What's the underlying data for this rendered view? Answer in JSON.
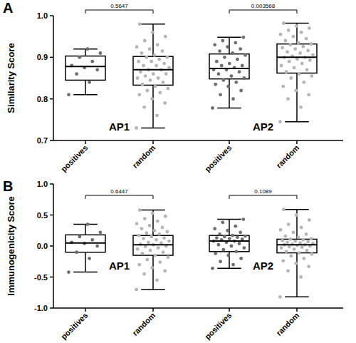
{
  "chart_data": [
    {
      "type": "box",
      "title": "A",
      "y_label": "Similarity Score",
      "categories": [
        "positives",
        "random",
        "positives",
        "random"
      ],
      "groups": [
        {
          "label": "AP1",
          "categories": [
            0,
            1
          ]
        },
        {
          "label": "AP2",
          "categories": [
            2,
            3
          ]
        }
      ],
      "comparisons": [
        {
          "label": "0.5647",
          "categories": [
            0,
            1
          ]
        },
        {
          "label": "0.003568",
          "categories": [
            2,
            3
          ]
        }
      ],
      "colors": [
        "#6e6e6e",
        "#b4b4b4",
        "#6e6e6e",
        "#b4b4b4"
      ],
      "ylim": [
        0.7,
        1.0
      ],
      "yticks": [
        0.7,
        0.8,
        0.9,
        {
          "value": 1.0,
          "label": "1.0"
        }
      ],
      "boxes": [
        {
          "min": 0.81,
          "q1": 0.845,
          "median": 0.878,
          "q3": 0.903,
          "max": 0.92,
          "points": [
            0.81,
            0.84,
            0.86,
            0.87,
            0.875,
            0.88,
            0.89,
            0.9,
            0.91,
            0.92
          ]
        },
        {
          "min": 0.73,
          "q1": 0.833,
          "median": 0.87,
          "q3": 0.902,
          "max": 0.98,
          "points": [
            0.73,
            0.76,
            0.78,
            0.79,
            0.8,
            0.81,
            0.815,
            0.82,
            0.825,
            0.83,
            0.835,
            0.84,
            0.845,
            0.85,
            0.85,
            0.855,
            0.86,
            0.86,
            0.865,
            0.87,
            0.87,
            0.875,
            0.88,
            0.88,
            0.885,
            0.89,
            0.89,
            0.895,
            0.9,
            0.9,
            0.905,
            0.91,
            0.915,
            0.92,
            0.925,
            0.93,
            0.94,
            0.95,
            0.96,
            0.98
          ]
        },
        {
          "min": 0.778,
          "q1": 0.848,
          "median": 0.873,
          "q3": 0.908,
          "max": 0.948,
          "points": [
            0.778,
            0.8,
            0.81,
            0.82,
            0.83,
            0.835,
            0.84,
            0.845,
            0.85,
            0.855,
            0.86,
            0.865,
            0.87,
            0.87,
            0.875,
            0.88,
            0.88,
            0.885,
            0.89,
            0.895,
            0.9,
            0.905,
            0.91,
            0.915,
            0.92,
            0.925,
            0.93,
            0.935,
            0.94,
            0.948
          ]
        },
        {
          "min": 0.745,
          "q1": 0.862,
          "median": 0.9,
          "q3": 0.932,
          "max": 0.982,
          "points": [
            0.745,
            0.78,
            0.8,
            0.81,
            0.82,
            0.83,
            0.84,
            0.85,
            0.855,
            0.86,
            0.865,
            0.87,
            0.875,
            0.88,
            0.885,
            0.89,
            0.893,
            0.896,
            0.9,
            0.9,
            0.903,
            0.906,
            0.91,
            0.913,
            0.916,
            0.92,
            0.923,
            0.926,
            0.93,
            0.932,
            0.935,
            0.94,
            0.945,
            0.95,
            0.955,
            0.96,
            0.965,
            0.97,
            0.975,
            0.982
          ]
        }
      ]
    },
    {
      "type": "box",
      "title": "B",
      "y_label": "Immunogenicity Score",
      "categories": [
        "positives",
        "random",
        "positives",
        "random"
      ],
      "groups": [
        {
          "label": "AP1",
          "categories": [
            0,
            1
          ]
        },
        {
          "label": "AP2",
          "categories": [
            2,
            3
          ]
        }
      ],
      "comparisons": [
        {
          "label": "0.6447",
          "categories": [
            0,
            1
          ]
        },
        {
          "label": "0.1089",
          "categories": [
            2,
            3
          ]
        }
      ],
      "colors": [
        "#6e6e6e",
        "#b4b4b4",
        "#6e6e6e",
        "#b4b4b4"
      ],
      "ylim": [
        -1.0,
        1.0
      ],
      "yticks": [
        {
          "value": -1.0,
          "label": "-1.0"
        },
        -0.5,
        {
          "value": 0.0,
          "label": "0.0"
        },
        0.5,
        {
          "value": 1.0,
          "label": "1.0"
        }
      ],
      "boxes": [
        {
          "min": -0.42,
          "q1": -0.1,
          "median": 0.05,
          "q3": 0.18,
          "max": 0.35,
          "points": [
            -0.42,
            -0.2,
            -0.1,
            0.0,
            0.04,
            0.06,
            0.1,
            0.15,
            0.22,
            0.35
          ]
        },
        {
          "min": -0.7,
          "q1": -0.15,
          "median": 0.02,
          "q3": 0.17,
          "max": 0.58,
          "points": [
            -0.7,
            -0.55,
            -0.45,
            -0.4,
            -0.35,
            -0.3,
            -0.26,
            -0.22,
            -0.18,
            -0.15,
            -0.12,
            -0.1,
            -0.07,
            -0.05,
            -0.03,
            -0.01,
            0.0,
            0.02,
            0.03,
            0.05,
            0.06,
            0.08,
            0.1,
            0.12,
            0.13,
            0.15,
            0.17,
            0.19,
            0.21,
            0.23,
            0.25,
            0.28,
            0.3,
            0.33,
            0.36,
            0.4,
            0.44,
            0.48,
            0.53,
            0.58
          ]
        },
        {
          "min": -0.36,
          "q1": -0.09,
          "median": 0.08,
          "q3": 0.17,
          "max": 0.43,
          "points": [
            -0.36,
            -0.3,
            -0.25,
            -0.2,
            -0.15,
            -0.12,
            -0.09,
            -0.06,
            -0.03,
            0.0,
            0.02,
            0.04,
            0.06,
            0.08,
            0.08,
            0.1,
            0.11,
            0.12,
            0.13,
            0.14,
            0.15,
            0.16,
            0.17,
            0.19,
            0.22,
            0.25,
            0.28,
            0.32,
            0.38,
            0.43
          ]
        },
        {
          "min": -0.82,
          "q1": -0.11,
          "median": 0.02,
          "q3": 0.11,
          "max": 0.59,
          "points": [
            -0.82,
            -0.5,
            -0.4,
            -0.33,
            -0.28,
            -0.24,
            -0.2,
            -0.16,
            -0.13,
            -0.11,
            -0.09,
            -0.07,
            -0.05,
            -0.03,
            -0.02,
            -0.01,
            0.0,
            0.01,
            0.02,
            0.02,
            0.03,
            0.04,
            0.05,
            0.06,
            0.07,
            0.08,
            0.09,
            0.1,
            0.11,
            0.12,
            0.14,
            0.16,
            0.19,
            0.22,
            0.26,
            0.3,
            0.35,
            0.42,
            0.5,
            0.59
          ]
        }
      ]
    }
  ]
}
